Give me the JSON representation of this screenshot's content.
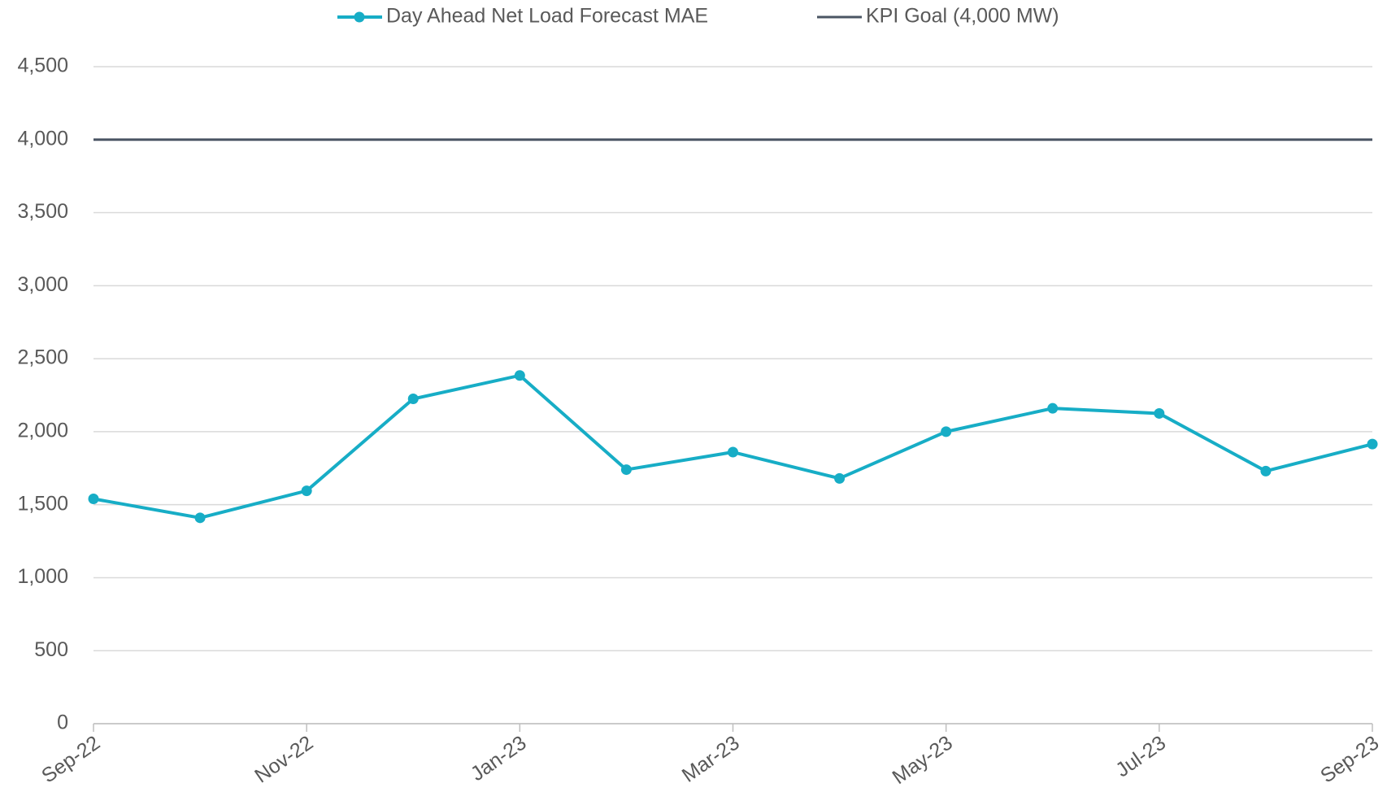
{
  "chart_data": {
    "type": "line",
    "categories": [
      "Sep-22",
      null,
      "Nov-22",
      null,
      "Jan-23",
      null,
      "Mar-23",
      null,
      "May-23",
      null,
      "Jul-23",
      null,
      "Sep-23"
    ],
    "series": [
      {
        "name": "Day Ahead Net Load Forecast MAE",
        "color": "#17adc6",
        "values": [
          1540,
          1410,
          1595,
          2225,
          2385,
          1740,
          1860,
          1680,
          2000,
          2160,
          2125,
          1730,
          1915
        ]
      },
      {
        "name": "KPI Goal (4,000 MW)",
        "color": "#4a5563",
        "values": [
          4000,
          4000,
          4000,
          4000,
          4000,
          4000,
          4000,
          4000,
          4000,
          4000,
          4000,
          4000,
          4000
        ]
      }
    ],
    "ylim": [
      0,
      4500
    ],
    "yticks": [
      0,
      500,
      {
        "value": 1000,
        "label": "1,000"
      },
      {
        "value": 1500,
        "label": "1,500"
      },
      {
        "value": 2000,
        "label": "2,000"
      },
      {
        "value": 2500,
        "label": "2,500"
      },
      {
        "value": 3000,
        "label": "3,000"
      },
      {
        "value": 3500,
        "label": "3,500"
      },
      {
        "value": 4000,
        "label": "4,000"
      },
      {
        "value": 4500,
        "label": "4,500"
      }
    ],
    "grid": true
  }
}
